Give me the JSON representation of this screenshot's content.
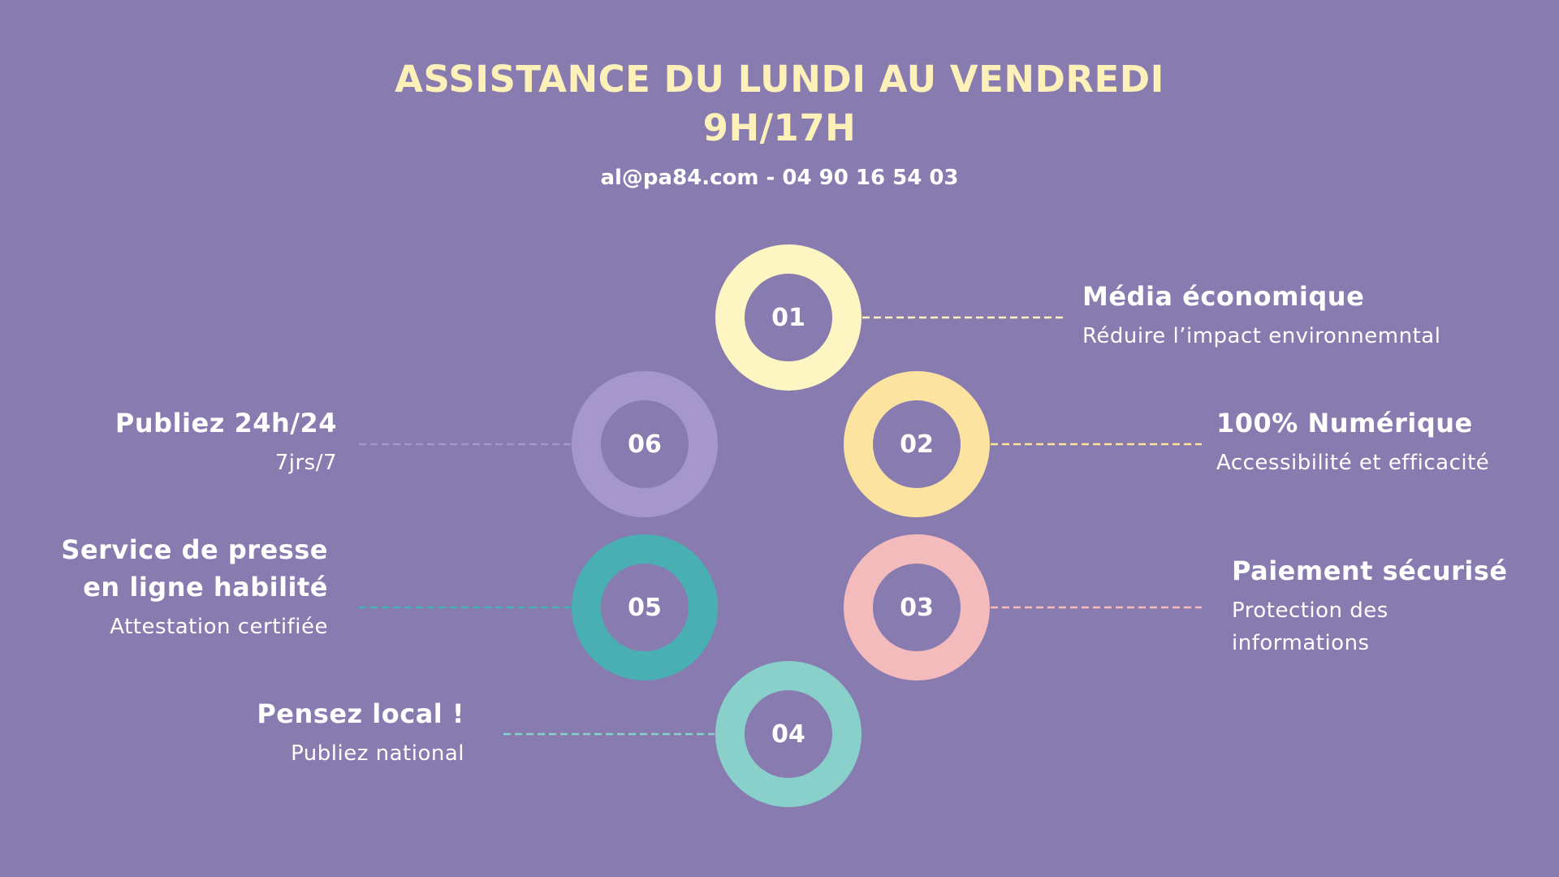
{
  "header": {
    "title_line_1": "ASSISTANCE DU LUNDI AU VENDREDI",
    "title_line_2": "9H/17H",
    "contact": "al@pa84.com - 04 90 16 54 03"
  },
  "colors": {
    "background": "#877bb0",
    "title": "#fdf0b8",
    "step_01": "#fdf5c2",
    "step_02": "#fde3a0",
    "step_03": "#f4bbbd",
    "step_04": "#89d0cb",
    "step_05": "#4aafb2",
    "step_06": "#a596cb"
  },
  "steps": [
    {
      "number": "01",
      "title": "Média économique",
      "subtitle": "Réduire l’impact environnemntal"
    },
    {
      "number": "02",
      "title": "100% Numérique",
      "subtitle": "Accessibilité et efficacité"
    },
    {
      "number": "03",
      "title": "Paiement sécurisé",
      "subtitle_line_1": "Protection des",
      "subtitle_line_2": "informations"
    },
    {
      "number": "04",
      "title": "Pensez local !",
      "subtitle": "Publiez national"
    },
    {
      "number": "05",
      "title_line_1": "Service de presse",
      "title_line_2": "en ligne habilité",
      "subtitle": "Attestation certifiée"
    },
    {
      "number": "06",
      "title": "Publiez 24h/24",
      "subtitle": "7jrs/7"
    }
  ]
}
